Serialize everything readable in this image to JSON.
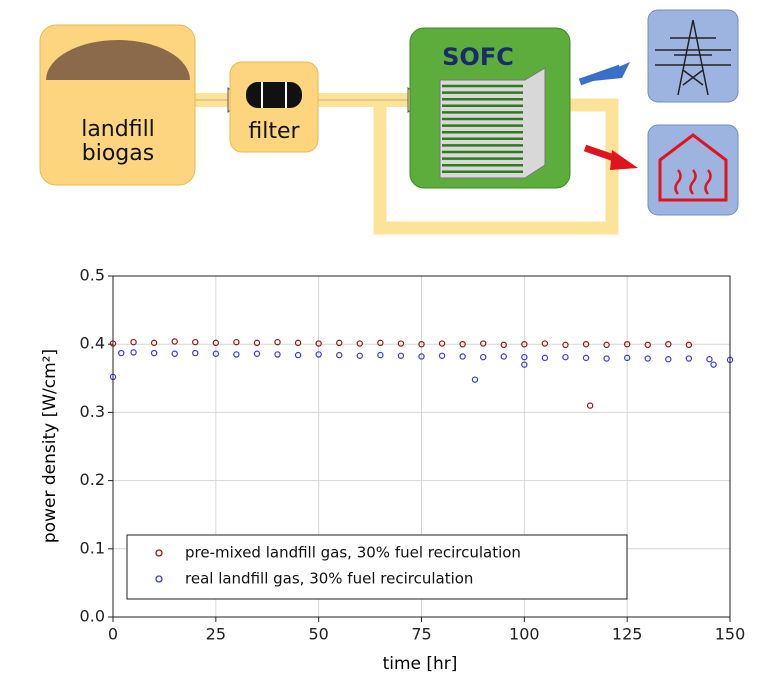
{
  "diagram": {
    "nodes": [
      {
        "label": "landfill\nbiogas"
      },
      {
        "label": "filter"
      },
      {
        "label": "SOFC"
      }
    ]
  },
  "chart_data": {
    "type": "scatter",
    "xlabel": "time [hr]",
    "ylabel": "power density [W/cm²]",
    "xlim": [
      0,
      150
    ],
    "ylim": [
      0,
      0.5
    ],
    "xticks": [
      0,
      25,
      50,
      75,
      100,
      125,
      150
    ],
    "yticks": [
      {
        "value": 0,
        "label": "0.0"
      },
      {
        "value": 0.1,
        "label": "0.1"
      },
      {
        "value": 0.2,
        "label": "0.2"
      },
      {
        "value": 0.3,
        "label": "0.3"
      },
      {
        "value": 0.4,
        "label": "0.4"
      },
      {
        "value": 0.5,
        "label": "0.5"
      }
    ],
    "grid": true,
    "legend": "lower left",
    "series": [
      {
        "name": "pre-mixed landfill gas, 30% fuel recirculation",
        "color": "#8b1a1a",
        "x": [
          0,
          5,
          10,
          15,
          20,
          25,
          30,
          35,
          40,
          45,
          50,
          55,
          60,
          65,
          70,
          75,
          80,
          85,
          90,
          95,
          100,
          105,
          110,
          115,
          120,
          125,
          130,
          135,
          140,
          116
        ],
        "values": [
          0.401,
          0.403,
          0.402,
          0.404,
          0.403,
          0.402,
          0.403,
          0.402,
          0.403,
          0.402,
          0.401,
          0.402,
          0.401,
          0.402,
          0.401,
          0.4,
          0.401,
          0.4,
          0.401,
          0.399,
          0.4,
          0.401,
          0.399,
          0.4,
          0.399,
          0.4,
          0.399,
          0.4,
          0.399,
          0.31
        ]
      },
      {
        "name": "real landfill gas, 30% fuel recirculation",
        "color": "#3a3adc",
        "x": [
          2,
          5,
          10,
          15,
          20,
          25,
          30,
          35,
          40,
          45,
          50,
          55,
          60,
          65,
          70,
          75,
          80,
          85,
          90,
          95,
          100,
          105,
          110,
          115,
          120,
          125,
          130,
          135,
          140,
          145,
          150,
          0,
          88,
          100,
          146
        ],
        "values": [
          0.387,
          0.388,
          0.387,
          0.386,
          0.387,
          0.386,
          0.385,
          0.386,
          0.385,
          0.384,
          0.385,
          0.384,
          0.383,
          0.384,
          0.383,
          0.382,
          0.383,
          0.382,
          0.381,
          0.382,
          0.381,
          0.38,
          0.381,
          0.38,
          0.379,
          0.38,
          0.379,
          0.378,
          0.379,
          0.378,
          0.377,
          0.352,
          0.348,
          0.37,
          0.37
        ]
      }
    ]
  }
}
